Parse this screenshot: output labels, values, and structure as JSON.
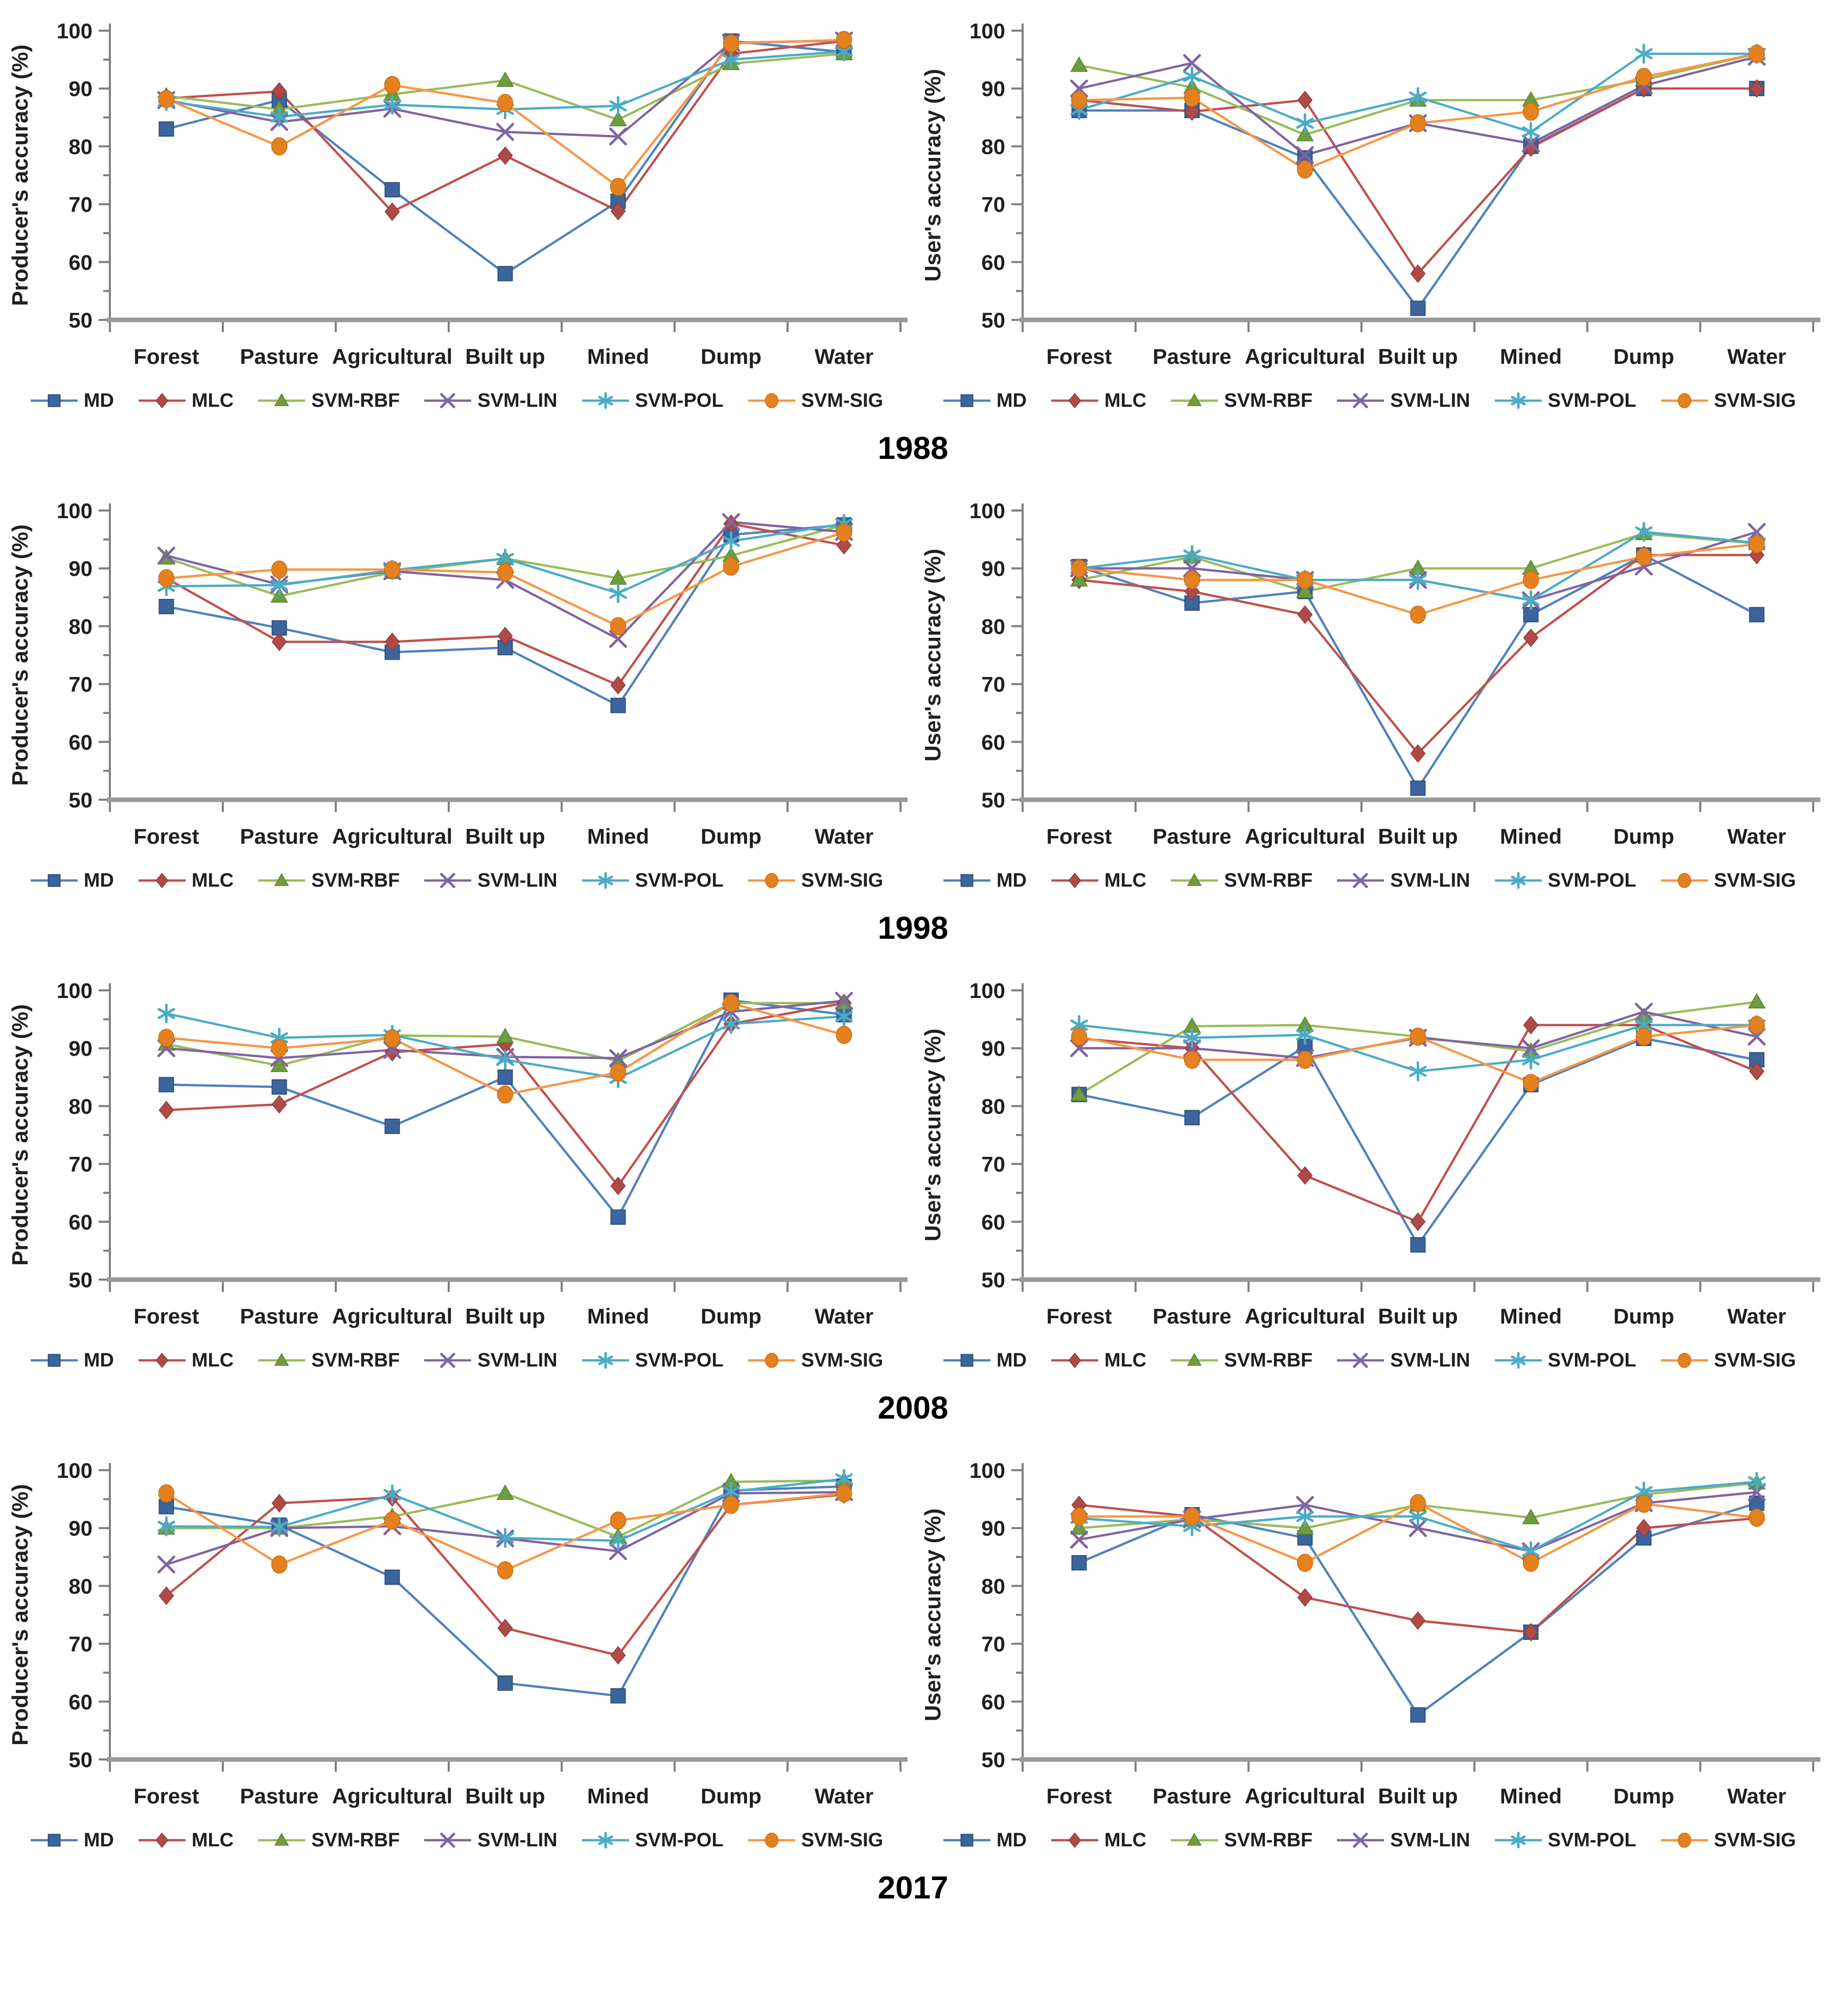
{
  "figure": {
    "years": [
      "1988",
      "1998",
      "2008",
      "2017"
    ],
    "categories": [
      "Forest",
      "Pasture",
      "Agricultural",
      "Built up",
      "Mined",
      "Dump",
      "Water"
    ],
    "y_axis": {
      "min": 50,
      "max": 100,
      "major_ticks": [
        50,
        60,
        70,
        80,
        90,
        100
      ],
      "minor_step": 5,
      "producer_label": "Producer's accuracy (%)",
      "user_label": "User's accuracy (%)"
    },
    "series_styles": [
      {
        "name": "MD",
        "marker": "square",
        "line_color": "#4F81BD",
        "marker_color": "#3C659E",
        "marker_edge": "#2E4D78"
      },
      {
        "name": "MLC",
        "marker": "diamond",
        "line_color": "#C0504D",
        "marker_color": "#B04A47",
        "marker_edge": "#8E3835"
      },
      {
        "name": "SVM-RBF",
        "marker": "triangle",
        "line_color": "#9BBB59",
        "marker_color": "#6E9C3E",
        "marker_edge": "#5A7F33"
      },
      {
        "name": "SVM-LIN",
        "marker": "x",
        "line_color": "#8064A2",
        "marker_color": "#8064A2",
        "marker_edge": "#8064A2"
      },
      {
        "name": "SVM-POL",
        "marker": "asterisk",
        "line_color": "#4BACC6",
        "marker_color": "#4BACC6",
        "marker_edge": "#4BACC6"
      },
      {
        "name": "SVM-SIG",
        "marker": "circle",
        "line_color": "#F79646",
        "marker_color": "#E5801F",
        "marker_edge": "#C96D14"
      }
    ]
  },
  "chart_data": [
    {
      "type": "line",
      "year": "1988",
      "panel": "producer",
      "ylabel": "Producer's accuracy (%)",
      "xlabel": "",
      "ylim": [
        50,
        100
      ],
      "grid": false,
      "legend_position": "bottom",
      "categories": [
        "Forest",
        "Pasture",
        "Agricultural",
        "Built up",
        "Mined",
        "Dump",
        "Water"
      ],
      "series": [
        {
          "name": "MD",
          "values": [
            83,
            88,
            72.5,
            58,
            70.5,
            98.2,
            96.3
          ]
        },
        {
          "name": "MLC",
          "values": [
            88.3,
            89.5,
            68.7,
            78.4,
            68.8,
            96,
            98.2
          ]
        },
        {
          "name": "SVM-RBF",
          "values": [
            88.7,
            86.4,
            89,
            91.4,
            84.6,
            94.3,
            96
          ]
        },
        {
          "name": "SVM-LIN",
          "values": [
            88,
            84.2,
            86.5,
            82.5,
            81.7,
            97.9,
            98.3
          ]
        },
        {
          "name": "SVM-POL",
          "values": [
            87.8,
            85.1,
            87.2,
            86.4,
            87,
            95,
            96.4
          ]
        },
        {
          "name": "SVM-SIG",
          "values": [
            88.2,
            80,
            90.6,
            87.5,
            73,
            97.8,
            98.4
          ]
        }
      ]
    },
    {
      "type": "line",
      "year": "1988",
      "panel": "user",
      "ylabel": "User's accuracy (%)",
      "xlabel": "",
      "ylim": [
        50,
        100
      ],
      "grid": false,
      "legend_position": "bottom",
      "categories": [
        "Forest",
        "Pasture",
        "Agricultural",
        "Built up",
        "Mined",
        "Dump",
        "Water"
      ],
      "series": [
        {
          "name": "MD",
          "values": [
            86.2,
            86.2,
            78,
            52,
            80,
            90,
            90
          ]
        },
        {
          "name": "MLC",
          "values": [
            88,
            86,
            88,
            58,
            79.8,
            90,
            90
          ]
        },
        {
          "name": "SVM-RBF",
          "values": [
            94,
            90.2,
            82,
            88,
            88,
            91.5,
            96
          ]
        },
        {
          "name": "SVM-LIN",
          "values": [
            90,
            94.4,
            78.5,
            84,
            80.5,
            90.5,
            95.5
          ]
        },
        {
          "name": "SVM-POL",
          "values": [
            86.3,
            92.1,
            84,
            88.5,
            82.5,
            96,
            96
          ]
        },
        {
          "name": "SVM-SIG",
          "values": [
            88,
            88.4,
            76,
            84,
            86,
            92,
            96
          ]
        }
      ]
    },
    {
      "type": "line",
      "year": "1998",
      "panel": "producer",
      "ylabel": "Producer's accuracy (%)",
      "xlabel": "",
      "ylim": [
        50,
        100
      ],
      "grid": false,
      "legend_position": "bottom",
      "categories": [
        "Forest",
        "Pasture",
        "Agricultural",
        "Built up",
        "Mined",
        "Dump",
        "Water"
      ],
      "series": [
        {
          "name": "MD",
          "values": [
            83.4,
            79.7,
            75.5,
            76.3,
            66.3,
            95.8,
            97.5
          ]
        },
        {
          "name": "MLC",
          "values": [
            88.3,
            77.3,
            77.3,
            78.3,
            69.8,
            97.7,
            94
          ]
        },
        {
          "name": "SVM-RBF",
          "values": [
            91.8,
            85.2,
            89.3,
            91.7,
            88.3,
            92.2,
            97.5
          ]
        },
        {
          "name": "SVM-LIN",
          "values": [
            92.2,
            87.2,
            89.5,
            88,
            77.8,
            98,
            96.3
          ]
        },
        {
          "name": "SVM-POL",
          "values": [
            86.9,
            87.1,
            89.7,
            91.7,
            85.7,
            94.7,
            97.7
          ]
        },
        {
          "name": "SVM-SIG",
          "values": [
            88.3,
            89.8,
            89.8,
            89.3,
            80,
            90.3,
            96.2
          ]
        }
      ]
    },
    {
      "type": "line",
      "year": "1998",
      "panel": "user",
      "ylabel": "User's accuracy (%)",
      "xlabel": "",
      "ylim": [
        50,
        100
      ],
      "grid": false,
      "legend_position": "bottom",
      "categories": [
        "Forest",
        "Pasture",
        "Agricultural",
        "Built up",
        "Mined",
        "Dump",
        "Water"
      ],
      "series": [
        {
          "name": "MD",
          "values": [
            90.3,
            84,
            86,
            52,
            82,
            92.3,
            82
          ]
        },
        {
          "name": "MLC",
          "values": [
            88,
            86,
            82,
            58,
            78,
            92.3,
            92.3
          ]
        },
        {
          "name": "SVM-RBF",
          "values": [
            88,
            92,
            86,
            90,
            90,
            96,
            94.3
          ]
        },
        {
          "name": "SVM-LIN",
          "values": [
            90,
            90,
            88,
            88,
            84.5,
            90.3,
            96.3
          ]
        },
        {
          "name": "SVM-POL",
          "values": [
            90,
            92.3,
            88,
            88,
            84.5,
            96.3,
            94.4
          ]
        },
        {
          "name": "SVM-SIG",
          "values": [
            90,
            88,
            88,
            82,
            88,
            92,
            94.2
          ]
        }
      ]
    },
    {
      "type": "line",
      "year": "2008",
      "panel": "producer",
      "ylabel": "Producer's accuracy (%)",
      "xlabel": "",
      "ylim": [
        50,
        100
      ],
      "grid": false,
      "legend_position": "bottom",
      "categories": [
        "Forest",
        "Pasture",
        "Agricultural",
        "Built up",
        "Mined",
        "Dump",
        "Water"
      ],
      "series": [
        {
          "name": "MD",
          "values": [
            83.7,
            83.3,
            76.5,
            85,
            60.8,
            98.3,
            95.8
          ]
        },
        {
          "name": "MLC",
          "values": [
            79.3,
            80.3,
            89.3,
            90.7,
            66.2,
            94.2,
            97.8
          ]
        },
        {
          "name": "SVM-RBF",
          "values": [
            90.7,
            87,
            92.2,
            92,
            87.8,
            97.8,
            97.8
          ]
        },
        {
          "name": "SVM-LIN",
          "values": [
            90,
            88.3,
            89.7,
            88.5,
            88.3,
            96.3,
            98.2
          ]
        },
        {
          "name": "SVM-POL",
          "values": [
            96,
            91.8,
            92.3,
            88,
            84.8,
            94.2,
            95.5
          ]
        },
        {
          "name": "SVM-SIG",
          "values": [
            91.8,
            90,
            91.7,
            82,
            85.8,
            97.8,
            92.3
          ]
        }
      ]
    },
    {
      "type": "line",
      "year": "2008",
      "panel": "user",
      "ylabel": "User's accuracy (%)",
      "xlabel": "",
      "ylim": [
        50,
        100
      ],
      "grid": false,
      "legend_position": "bottom",
      "categories": [
        "Forest",
        "Pasture",
        "Agricultural",
        "Built up",
        "Mined",
        "Dump",
        "Water"
      ],
      "series": [
        {
          "name": "MD",
          "values": [
            82,
            78,
            90.3,
            56,
            83.7,
            91.7,
            88
          ]
        },
        {
          "name": "MLC",
          "values": [
            91.7,
            90,
            68,
            60,
            94,
            94,
            86
          ]
        },
        {
          "name": "SVM-RBF",
          "values": [
            82,
            93.8,
            94,
            92,
            89.5,
            95.5,
            98
          ]
        },
        {
          "name": "SVM-LIN",
          "values": [
            90,
            90,
            88.3,
            91.8,
            90,
            96.3,
            92
          ]
        },
        {
          "name": "SVM-POL",
          "values": [
            94,
            91.8,
            92.3,
            86,
            88,
            94,
            94
          ]
        },
        {
          "name": "SVM-SIG",
          "values": [
            92,
            88,
            88,
            92,
            84,
            92,
            94
          ]
        }
      ]
    },
    {
      "type": "line",
      "year": "2017",
      "panel": "producer",
      "ylabel": "Producer's accuracy (%)",
      "xlabel": "",
      "ylim": [
        50,
        100
      ],
      "grid": false,
      "legend_position": "bottom",
      "categories": [
        "Forest",
        "Pasture",
        "Agricultural",
        "Built up",
        "Mined",
        "Dump",
        "Water"
      ],
      "series": [
        {
          "name": "MD",
          "values": [
            93.7,
            90.5,
            81.5,
            63.2,
            61,
            96.5,
            97.2
          ]
        },
        {
          "name": "MLC",
          "values": [
            78.3,
            94.3,
            95.3,
            72.7,
            68,
            94,
            95.8
          ]
        },
        {
          "name": "SVM-RBF",
          "values": [
            90,
            90,
            92,
            96,
            88.5,
            98,
            98.2
          ]
        },
        {
          "name": "SVM-LIN",
          "values": [
            83.7,
            90,
            90.3,
            88.2,
            86,
            96,
            96.2
          ]
        },
        {
          "name": "SVM-POL",
          "values": [
            90.3,
            90.2,
            95.8,
            88.3,
            87.8,
            96.3,
            98.5
          ]
        },
        {
          "name": "SVM-SIG",
          "values": [
            96,
            83.7,
            91.3,
            82.7,
            91.3,
            94,
            96
          ]
        }
      ]
    },
    {
      "type": "line",
      "year": "2017",
      "panel": "user",
      "ylabel": "User's accuracy (%)",
      "xlabel": "",
      "ylim": [
        50,
        100
      ],
      "grid": false,
      "legend_position": "bottom",
      "categories": [
        "Forest",
        "Pasture",
        "Agricultural",
        "Built up",
        "Mined",
        "Dump",
        "Water"
      ],
      "series": [
        {
          "name": "MD",
          "values": [
            84,
            92.3,
            88.3,
            57.7,
            72,
            88.3,
            94.3
          ]
        },
        {
          "name": "MLC",
          "values": [
            94,
            92,
            78,
            74,
            72,
            90,
            91.7
          ]
        },
        {
          "name": "SVM-RBF",
          "values": [
            90,
            91.5,
            90,
            94,
            91.8,
            95.8,
            97.8
          ]
        },
        {
          "name": "SVM-LIN",
          "values": [
            88,
            91.5,
            94,
            90,
            86,
            94.3,
            96.2
          ]
        },
        {
          "name": "SVM-POL",
          "values": [
            91.7,
            90.3,
            92,
            92,
            86,
            96.3,
            98
          ]
        },
        {
          "name": "SVM-SIG",
          "values": [
            92,
            92,
            84,
            94.3,
            84,
            94.2,
            91.8
          ]
        }
      ]
    }
  ]
}
